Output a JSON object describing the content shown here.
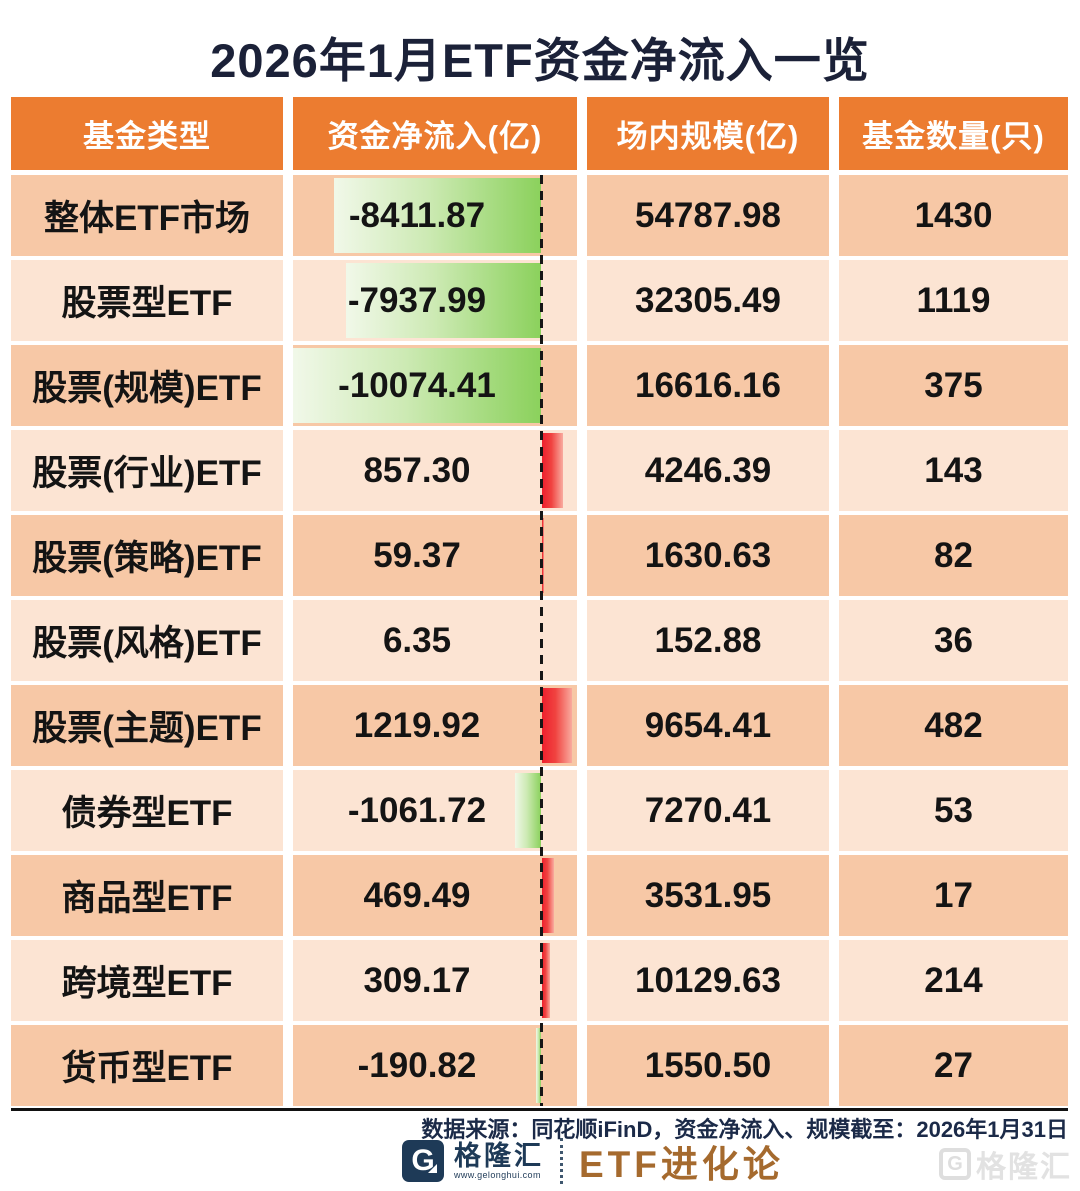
{
  "title": "2026年1月ETF资金净流入一览",
  "table": {
    "headers": [
      "基金类型",
      "资金净流入(亿)",
      "场内规模(亿)",
      "基金数量(只)"
    ],
    "rows": [
      {
        "type": "整体ETF市场",
        "net_flow": "-8411.87",
        "net_flow_value": -8411.87,
        "scale": "54787.98",
        "count": "1430"
      },
      {
        "type": "股票型ETF",
        "net_flow": "-7937.99",
        "net_flow_value": -7937.99,
        "scale": "32305.49",
        "count": "1119"
      },
      {
        "type": "股票(规模)ETF",
        "net_flow": "-10074.41",
        "net_flow_value": -10074.41,
        "scale": "16616.16",
        "count": "375"
      },
      {
        "type": "股票(行业)ETF",
        "net_flow": "857.30",
        "net_flow_value": 857.3,
        "scale": "4246.39",
        "count": "143"
      },
      {
        "type": "股票(策略)ETF",
        "net_flow": "59.37",
        "net_flow_value": 59.37,
        "scale": "1630.63",
        "count": "82"
      },
      {
        "type": "股票(风格)ETF",
        "net_flow": "6.35",
        "net_flow_value": 6.35,
        "scale": "152.88",
        "count": "36"
      },
      {
        "type": "股票(主题)ETF",
        "net_flow": "1219.92",
        "net_flow_value": 1219.92,
        "scale": "9654.41",
        "count": "482"
      },
      {
        "type": "债券型ETF",
        "net_flow": "-1061.72",
        "net_flow_value": -1061.72,
        "scale": "7270.41",
        "count": "53"
      },
      {
        "type": "商品型ETF",
        "net_flow": "469.49",
        "net_flow_value": 469.49,
        "scale": "3531.95",
        "count": "17"
      },
      {
        "type": "跨境型ETF",
        "net_flow": "309.17",
        "net_flow_value": 309.17,
        "scale": "10129.63",
        "count": "214"
      },
      {
        "type": "货币型ETF",
        "net_flow": "-190.82",
        "net_flow_value": -190.82,
        "scale": "1550.50",
        "count": "27"
      }
    ]
  },
  "footer": {
    "source_note": "数据来源：同花顺iFinD，资金净流入、规模截至：2026年1月31日",
    "brand_initial": "G",
    "brand_name": "格隆汇",
    "brand_url": "www.gelonghui.com",
    "column_name": "ETF进化论",
    "watermark_initial": "G",
    "watermark_text": "格隆汇"
  },
  "colors": {
    "header_bg": "#ec7c30",
    "row_odd_bg": "#f7c8a6",
    "row_even_bg": "#fce4d3",
    "positive_bar": "#ee1f2d",
    "negative_bar": "#8bd15c",
    "title_navy": "#1b2138",
    "brand_bronze": "#a56a2e"
  },
  "chart_data": {
    "type": "table",
    "title": "2026年1月ETF资金净流入一览",
    "columns": [
      "基金类型",
      "资金净流入(亿)",
      "场内规模(亿)",
      "基金数量(只)"
    ],
    "rows": [
      [
        "整体ETF市场",
        -8411.87,
        54787.98,
        1430
      ],
      [
        "股票型ETF",
        -7937.99,
        32305.49,
        1119
      ],
      [
        "股票(规模)ETF",
        -10074.41,
        16616.16,
        375
      ],
      [
        "股票(行业)ETF",
        857.3,
        4246.39,
        143
      ],
      [
        "股票(策略)ETF",
        59.37,
        1630.63,
        82
      ],
      [
        "股票(风格)ETF",
        6.35,
        152.88,
        36
      ],
      [
        "股票(主题)ETF",
        1219.92,
        9654.41,
        482
      ],
      [
        "债券型ETF",
        -1061.72,
        7270.41,
        53
      ],
      [
        "商品型ETF",
        469.49,
        3531.95,
        17
      ],
      [
        "跨境型ETF",
        309.17,
        10129.63,
        214
      ],
      [
        "货币型ETF",
        -190.82,
        1550.5,
        27
      ]
    ],
    "embedded_bar": {
      "column": "资金净流入(亿)",
      "baseline": 0,
      "negative_direction": "left",
      "positive_direction": "right",
      "negative_color": "green-gradient",
      "positive_color": "red-gradient",
      "value_range_for_scale": [
        -10074.41,
        1219.92
      ]
    },
    "legend_position": "none",
    "grid": false
  }
}
